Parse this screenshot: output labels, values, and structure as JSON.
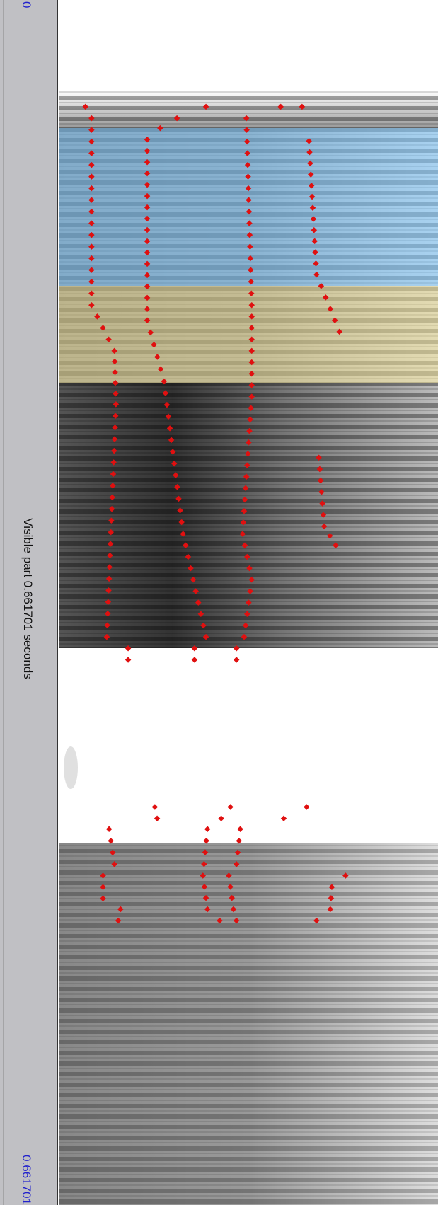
{
  "panel": {
    "start_time": "0",
    "visible_part": "Visible part 0.661701 seconds",
    "end_time": "0.661701"
  }
}
